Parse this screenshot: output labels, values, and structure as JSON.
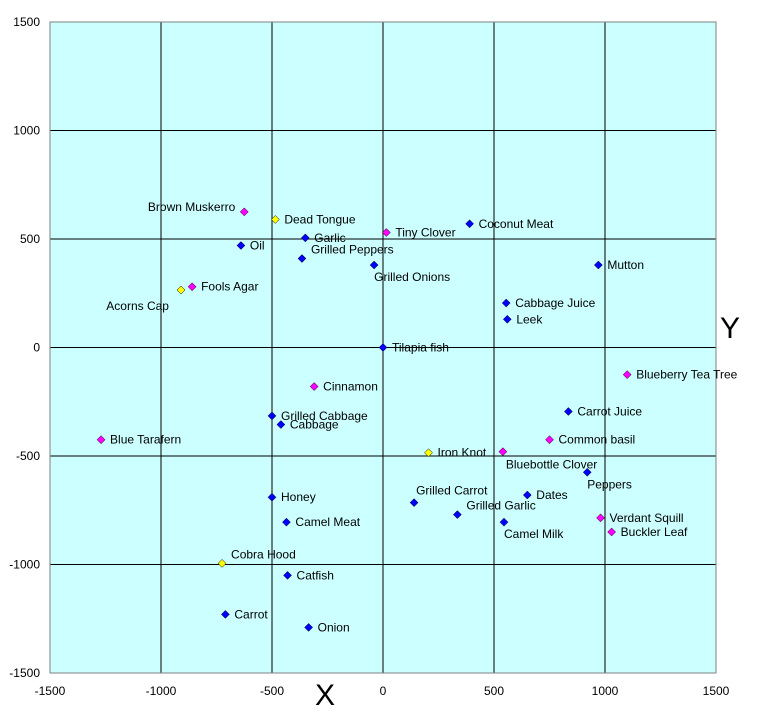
{
  "chart_data": {
    "type": "scatter",
    "title": "",
    "xlabel": "X",
    "ylabel": "Y",
    "xlim": [
      -1500,
      1500
    ],
    "ylim": [
      -1500,
      1500
    ],
    "xticks": [
      -1500,
      -1000,
      -500,
      0,
      500,
      1000,
      1500
    ],
    "yticks": [
      -1500,
      -1000,
      -500,
      0,
      500,
      1000,
      1500
    ],
    "grid": true,
    "colors": {
      "plot_bg": "#ccffff",
      "grid": "#000000",
      "blue": "#0000ff",
      "magenta": "#ff00ff",
      "yellow": "#ffff00"
    },
    "points": [
      {
        "label": "Brown Muskerro",
        "x": -625,
        "y": 625,
        "color": "magenta",
        "label_side": "left"
      },
      {
        "label": "Dead Tongue",
        "x": -485,
        "y": 590,
        "color": "yellow",
        "label_side": "right"
      },
      {
        "label": "Garlic",
        "x": -350,
        "y": 505,
        "color": "blue",
        "label_side": "right"
      },
      {
        "label": "Oil",
        "x": -640,
        "y": 470,
        "color": "blue",
        "label_side": "right"
      },
      {
        "label": "Grilled Peppers",
        "x": -365,
        "y": 410,
        "color": "blue",
        "label_side": "right-up"
      },
      {
        "label": "Tiny Clover",
        "x": 15,
        "y": 530,
        "color": "magenta",
        "label_side": "right"
      },
      {
        "label": "Coconut Meat",
        "x": 390,
        "y": 570,
        "color": "blue",
        "label_side": "right"
      },
      {
        "label": "Grilled Onions",
        "x": -40,
        "y": 380,
        "color": "blue",
        "label_side": "below-right"
      },
      {
        "label": "Mutton",
        "x": 970,
        "y": 380,
        "color": "blue",
        "label_side": "right"
      },
      {
        "label": "Fools Agar",
        "x": -860,
        "y": 280,
        "color": "magenta",
        "label_side": "right"
      },
      {
        "label": "Acorns Cap",
        "x": -910,
        "y": 265,
        "color": "yellow",
        "label_side": "below-left"
      },
      {
        "label": "Cabbage Juice",
        "x": 555,
        "y": 205,
        "color": "blue",
        "label_side": "right"
      },
      {
        "label": "Leek",
        "x": 560,
        "y": 130,
        "color": "blue",
        "label_side": "right"
      },
      {
        "label": "Tilapia fish",
        "x": 0,
        "y": 0,
        "color": "blue",
        "label_side": "right"
      },
      {
        "label": "Blueberry Tea Tree",
        "x": 1100,
        "y": -125,
        "color": "magenta",
        "label_side": "right"
      },
      {
        "label": "Cinnamon",
        "x": -310,
        "y": -180,
        "color": "magenta",
        "label_side": "right"
      },
      {
        "label": "Carrot Juice",
        "x": 835,
        "y": -295,
        "color": "blue",
        "label_side": "right"
      },
      {
        "label": "Grilled Cabbage",
        "x": -500,
        "y": -315,
        "color": "blue",
        "label_side": "right"
      },
      {
        "label": "Cabbage",
        "x": -460,
        "y": -355,
        "color": "blue",
        "label_side": "right"
      },
      {
        "label": "Blue Tarafern",
        "x": -1270,
        "y": -425,
        "color": "magenta",
        "label_side": "right"
      },
      {
        "label": "Common basil",
        "x": 750,
        "y": -425,
        "color": "magenta",
        "label_side": "right"
      },
      {
        "label": "Iron Knot",
        "x": 205,
        "y": -485,
        "color": "yellow",
        "label_side": "right"
      },
      {
        "label": "Bluebottle Clover",
        "x": 540,
        "y": -480,
        "color": "magenta",
        "label_side": "below"
      },
      {
        "label": "Peppers",
        "x": 920,
        "y": -575,
        "color": "blue",
        "label_side": "below-right"
      },
      {
        "label": "Honey",
        "x": -500,
        "y": -690,
        "color": "blue",
        "label_side": "right"
      },
      {
        "label": "Dates",
        "x": 650,
        "y": -680,
        "color": "blue",
        "label_side": "right"
      },
      {
        "label": "Grilled Carrot",
        "x": 140,
        "y": -715,
        "color": "blue",
        "label_side": "above-right"
      },
      {
        "label": "Grilled Garlic",
        "x": 335,
        "y": -770,
        "color": "blue",
        "label_side": "right-up"
      },
      {
        "label": "Camel Meat",
        "x": -435,
        "y": -805,
        "color": "blue",
        "label_side": "right"
      },
      {
        "label": "Verdant Squill",
        "x": 980,
        "y": -785,
        "color": "magenta",
        "label_side": "right"
      },
      {
        "label": "Camel Milk",
        "x": 545,
        "y": -805,
        "color": "blue",
        "label_side": "below-right"
      },
      {
        "label": "Buckler Leaf",
        "x": 1030,
        "y": -850,
        "color": "magenta",
        "label_side": "right"
      },
      {
        "label": "Cobra Hood",
        "x": -725,
        "y": -995,
        "color": "yellow",
        "label_side": "right-up"
      },
      {
        "label": "Catfish",
        "x": -430,
        "y": -1050,
        "color": "blue",
        "label_side": "right"
      },
      {
        "label": "Carrot",
        "x": -710,
        "y": -1230,
        "color": "blue",
        "label_side": "right"
      },
      {
        "label": "Onion",
        "x": -335,
        "y": -1290,
        "color": "blue",
        "label_side": "right"
      }
    ]
  }
}
